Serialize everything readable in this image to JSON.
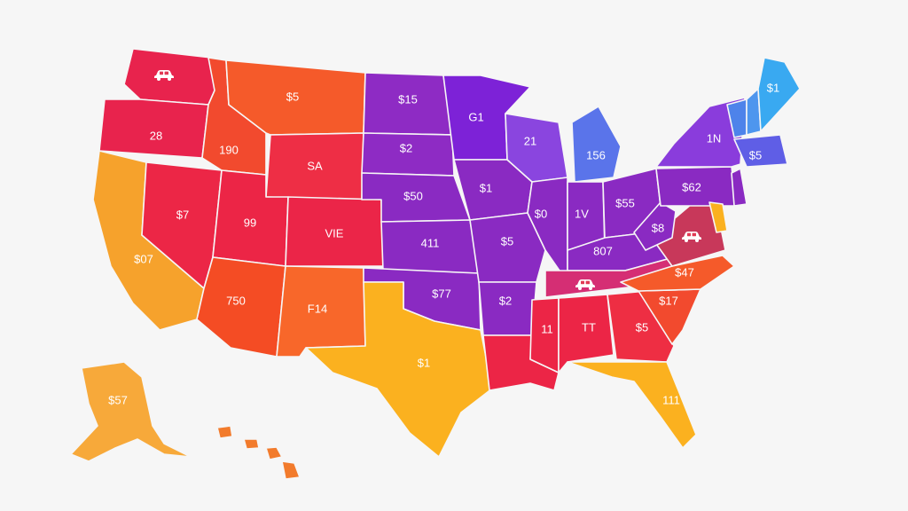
{
  "map": {
    "region": "United States",
    "regions": [
      {
        "id": "WA",
        "label": "",
        "icon": "car-icon",
        "color": "#e8234d"
      },
      {
        "id": "OR",
        "label": "28",
        "color": "#e8234d"
      },
      {
        "id": "CA",
        "label": "$07",
        "color": "#f6a22c"
      },
      {
        "id": "NV",
        "label": "$7",
        "color": "#ec2646"
      },
      {
        "id": "ID",
        "label": "190",
        "color": "#f24a2e"
      },
      {
        "id": "MT",
        "label": "$5",
        "color": "#f55a2a"
      },
      {
        "id": "WY",
        "label": "SA",
        "color": "#ee2e45"
      },
      {
        "id": "UT",
        "label": "99",
        "color": "#ec2546"
      },
      {
        "id": "CO",
        "label": "VIE",
        "color": "#eb2548"
      },
      {
        "id": "AZ",
        "label": "750",
        "color": "#f44c24"
      },
      {
        "id": "NM",
        "label": "F14",
        "color": "#f8672a"
      },
      {
        "id": "ND",
        "label": "$15",
        "color": "#8e2bc4"
      },
      {
        "id": "SD",
        "label": "$2",
        "color": "#8e2bc4"
      },
      {
        "id": "NE",
        "label": "$50",
        "color": "#8a2ac2"
      },
      {
        "id": "KS",
        "label": "411",
        "color": "#8a2ac2"
      },
      {
        "id": "OK",
        "label": "$77",
        "color": "#8a2ac2"
      },
      {
        "id": "TX",
        "label": "$1",
        "color": "#fbb11f"
      },
      {
        "id": "MN",
        "label": "G1",
        "color": "#7d22d7"
      },
      {
        "id": "IA",
        "label": "$1",
        "color": "#8a2ac2"
      },
      {
        "id": "MO",
        "label": "$5",
        "color": "#8a2ac2"
      },
      {
        "id": "AR",
        "label": "$2",
        "color": "#8a2ac2"
      },
      {
        "id": "LA",
        "label": "",
        "color": "#ec2546"
      },
      {
        "id": "WI",
        "label": "21",
        "color": "#8a45df"
      },
      {
        "id": "IL",
        "label": "$0",
        "color": "#8a2ac2"
      },
      {
        "id": "MI",
        "label": "156",
        "color": "#5a74ea"
      },
      {
        "id": "IN",
        "label": "1V",
        "color": "#8a2ac2"
      },
      {
        "id": "OH",
        "label": "$55",
        "color": "#8a2ac2"
      },
      {
        "id": "KY",
        "label": "807",
        "color": "#8a2ac2"
      },
      {
        "id": "TN",
        "label": "",
        "icon": "car-icon",
        "color": "#d52e74"
      },
      {
        "id": "MS",
        "label": "11",
        "color": "#ec2546"
      },
      {
        "id": "AL",
        "label": "TT",
        "color": "#ec2546"
      },
      {
        "id": "GA",
        "label": "$5",
        "color": "#ee2e43"
      },
      {
        "id": "FL",
        "label": "111",
        "color": "#fbb11f"
      },
      {
        "id": "SC",
        "label": "$17",
        "color": "#f24a2e"
      },
      {
        "id": "NC",
        "label": "$47",
        "color": "#f55a2a"
      },
      {
        "id": "VA",
        "label": "",
        "icon": "car-icon",
        "color": "#c8385a"
      },
      {
        "id": "WV",
        "label": "$8",
        "color": "#8a2ac2"
      },
      {
        "id": "PA",
        "label": "$62",
        "color": "#8a2ac2"
      },
      {
        "id": "NY",
        "label": "1N",
        "color": "#8a3cdc"
      },
      {
        "id": "NJ",
        "label": "",
        "color": "#8a2ac2"
      },
      {
        "id": "DE",
        "label": "",
        "color": "#fbb11f"
      },
      {
        "id": "VT",
        "label": "",
        "color": "#4e83ea"
      },
      {
        "id": "NH",
        "label": "",
        "color": "#4e96ee"
      },
      {
        "id": "ME",
        "label": "$1",
        "color": "#39a9f1"
      },
      {
        "id": "MA",
        "label": "$5",
        "color": "#5f5ee6"
      },
      {
        "id": "AK",
        "label": "$57",
        "color": "#f7a93a"
      },
      {
        "id": "HI",
        "label": "",
        "color": "#f27b2c"
      }
    ]
  }
}
